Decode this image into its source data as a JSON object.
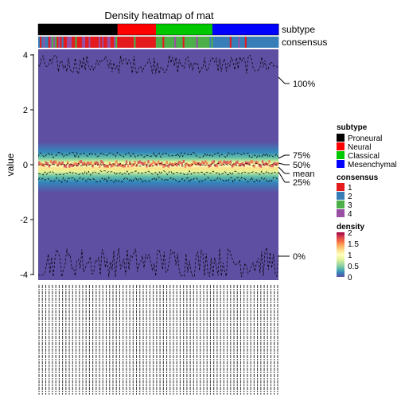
{
  "chart_data": {
    "type": "heatmap",
    "title": "Density heatmap of mat",
    "ylabel": "value",
    "ylim": [
      -4.3,
      4.2
    ],
    "y_ticks": [
      "4",
      "2",
      "0",
      "-2",
      "-4"
    ],
    "n_columns": 143,
    "annotations": [
      {
        "name": "subtype",
        "legend": [
          {
            "label": "Proneural",
            "color": "#000000"
          },
          {
            "label": "Neural",
            "color": "#FF0000"
          },
          {
            "label": "Classical",
            "color": "#00C800"
          },
          {
            "label": "Mesenchymal",
            "color": "#0000FF"
          }
        ],
        "blocks": [
          {
            "level": "Proneural",
            "fraction": 0.33
          },
          {
            "level": "Neural",
            "fraction": 0.16
          },
          {
            "level": "Classical",
            "fraction": 0.235
          },
          {
            "level": "Mesenchymal",
            "fraction": 0.275
          }
        ]
      },
      {
        "name": "consensus",
        "legend": [
          {
            "label": "1",
            "color": "#E41A1C"
          },
          {
            "label": "2",
            "color": "#377EB8"
          },
          {
            "label": "3",
            "color": "#4DAF4A"
          },
          {
            "label": "4",
            "color": "#984EA3"
          }
        ]
      }
    ],
    "density_legend": {
      "title": "density",
      "ticks": [
        "2",
        "1.5",
        "1",
        "0.5",
        "0"
      ],
      "range": [
        0,
        2
      ],
      "colors": [
        "#5E4FA2",
        "#3288BD",
        "#66C2A5",
        "#ABDDA4",
        "#E6F598",
        "#FFFFBF",
        "#FEE08B",
        "#FDAE61",
        "#F46D43",
        "#D53E4F",
        "#9E0142"
      ]
    },
    "quantile_labels": [
      {
        "label": "100%",
        "value": 3.5
      },
      {
        "label": "75%",
        "value": 0.35
      },
      {
        "label": "50%",
        "value": 0.0
      },
      {
        "label": "mean",
        "value": -0.27
      },
      {
        "label": "25%",
        "value": -0.55
      },
      {
        "label": "0%",
        "value": -3.5
      }
    ]
  }
}
